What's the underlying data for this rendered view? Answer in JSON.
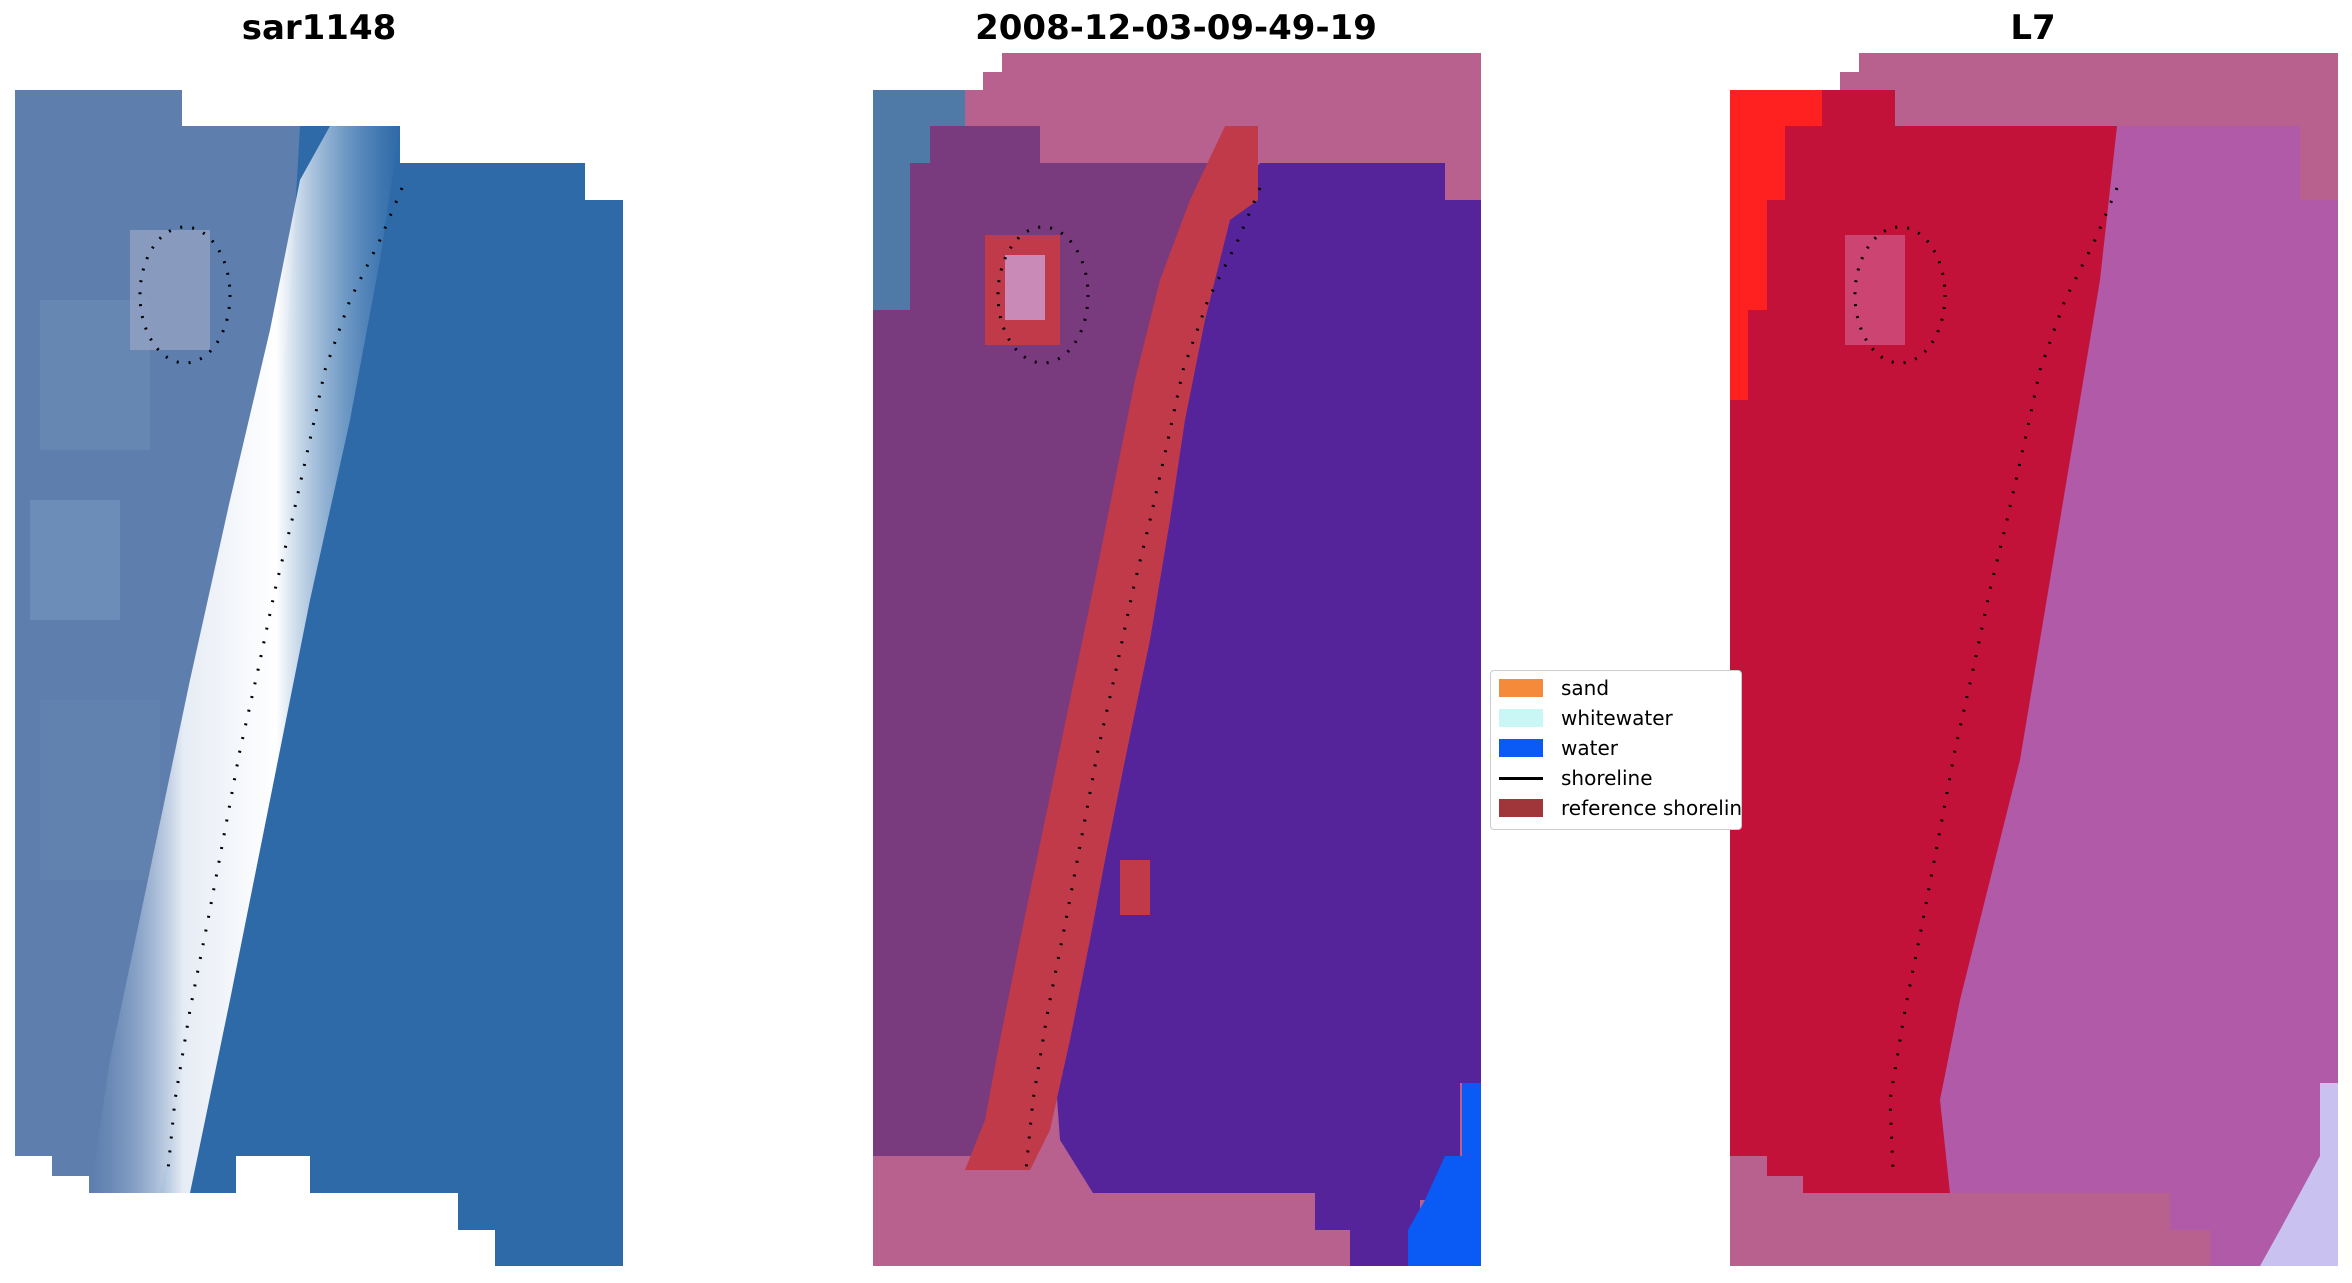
{
  "titles": {
    "left": "sar1148",
    "center": "2008-12-03-09-49-19",
    "right": "L7"
  },
  "legend": {
    "items": [
      {
        "label": "sand",
        "color": "#f58a3b"
      },
      {
        "label": "whitewater",
        "color": "#c8f7f5"
      },
      {
        "label": "water",
        "color": "#0a5bf5"
      },
      {
        "label": "shoreline",
        "color": "#000000"
      },
      {
        "label": "reference shoreline",
        "color": "#a0353a"
      }
    ]
  },
  "colors": {
    "water_blue": "#2f6aa8",
    "land_blue": "#5e7fae",
    "mask_pink": "#b8618f",
    "water_purple": "#55249a",
    "land_purple": "#7a3a7e",
    "reference_red": "#c03a4a",
    "bright_water": "#0a5bf5",
    "land_red": "#c3123a",
    "water_magenta": "#b05aa8",
    "pure_red": "#ff2020"
  }
}
